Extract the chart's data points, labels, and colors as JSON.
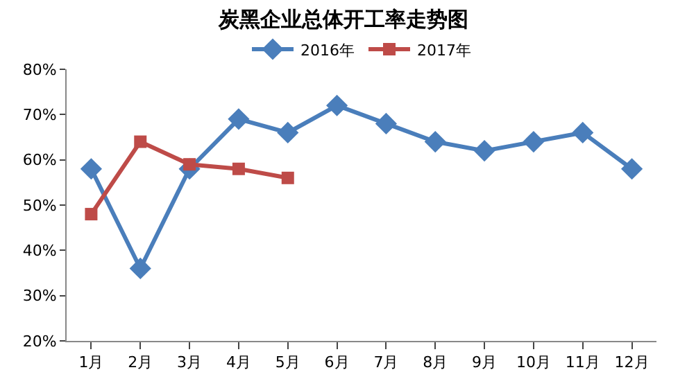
{
  "chart_data": {
    "type": "line",
    "title": "炭黑企业总体开工率走势图",
    "categories": [
      "1月",
      "2月",
      "3月",
      "4月",
      "5月",
      "6月",
      "7月",
      "8月",
      "9月",
      "10月",
      "11月",
      "12月"
    ],
    "series": [
      {
        "name": "2016年",
        "color": "#4a7ebb",
        "marker": "diamond",
        "values": [
          58,
          36,
          58,
          69,
          66,
          72,
          68,
          64,
          62,
          64,
          66,
          58
        ]
      },
      {
        "name": "2017年",
        "color": "#be4b48",
        "marker": "square",
        "values": [
          48,
          64,
          59,
          58,
          56,
          null,
          null,
          null,
          null,
          null,
          null,
          null
        ]
      }
    ],
    "ylim": [
      20,
      80
    ],
    "yticks": [
      {
        "value": 20,
        "label": "20%"
      },
      {
        "value": 30,
        "label": "30%"
      },
      {
        "value": 40,
        "label": "40%"
      },
      {
        "value": 50,
        "label": "50%"
      },
      {
        "value": 60,
        "label": "60%"
      },
      {
        "value": 70,
        "label": "70%"
      },
      {
        "value": 80,
        "label": "80%"
      }
    ],
    "legend": "top"
  }
}
